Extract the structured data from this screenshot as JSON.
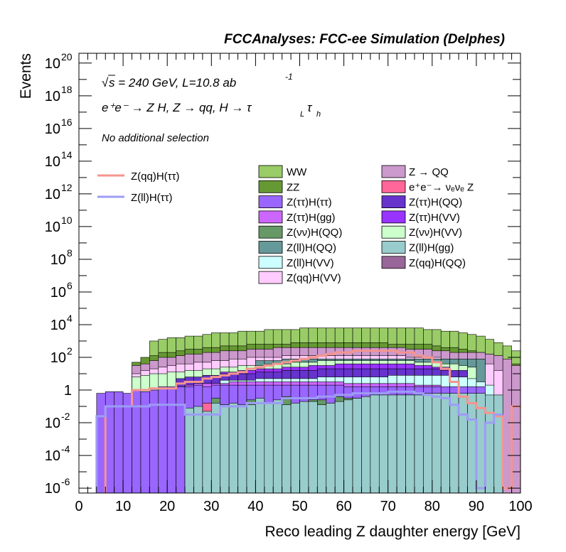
{
  "chart_data": {
    "type": "histogram-stack",
    "header": "FCCAnalyses: FCC-ee Simulation (Delphes)",
    "annotations": {
      "sqrt_s": "s = 240 GeV, L=10.8 ab",
      "sqrt_symbol": "√",
      "lumi_exp": "-1",
      "process": "e⁺e⁻ → Z H, Z → qq, H → τ",
      "tau_l": "L",
      "tau_h": "h",
      "tau_sym": "τ",
      "selection": "No additional selection"
    },
    "xlabel": "Reco leading Z daughter energy [GeV]",
    "ylabel": "Events",
    "x_range": [
      0,
      100
    ],
    "y_range_log10": [
      -6.3,
      20.6
    ],
    "x_ticks": [
      0,
      10,
      20,
      30,
      40,
      50,
      60,
      70,
      80,
      90,
      100
    ],
    "y_ticks": [
      {
        "p": 20,
        "base": "10",
        "exp": "20"
      },
      {
        "p": 18,
        "base": "10",
        "exp": "18"
      },
      {
        "p": 16,
        "base": "10",
        "exp": "16"
      },
      {
        "p": 14,
        "base": "10",
        "exp": "14"
      },
      {
        "p": 12,
        "base": "10",
        "exp": "12"
      },
      {
        "p": 10,
        "base": "10",
        "exp": "10"
      },
      {
        "p": 8,
        "base": "10",
        "exp": "8"
      },
      {
        "p": 6,
        "base": "10",
        "exp": "6"
      },
      {
        "p": 4,
        "base": "10",
        "exp": "4"
      },
      {
        "p": 2,
        "base": "10",
        "exp": "2"
      },
      {
        "p": 0,
        "base": "1",
        "exp": ""
      },
      {
        "p": -2,
        "base": "10",
        "exp": "-2"
      },
      {
        "p": -4,
        "base": "10",
        "exp": "-4"
      },
      {
        "p": -6,
        "base": "10",
        "exp": "-6"
      }
    ],
    "legend_signal": [
      {
        "label": "Z(qq)H(ττ)",
        "color": "#f5948e"
      },
      {
        "label": "Z(ll)H(ττ)",
        "color": "#9c9cf5"
      }
    ],
    "legend_background_col1": [
      {
        "label": "WW",
        "color": "#99cc66"
      },
      {
        "label": "ZZ",
        "color": "#669933"
      },
      {
        "label": "Z(ττ)H(ττ)",
        "color": "#9966ff"
      },
      {
        "label": "Z(ττ)H(gg)",
        "color": "#cc66ff"
      },
      {
        "label": "Z(νν)H(QQ)",
        "color": "#669966"
      },
      {
        "label": "Z(ll)H(QQ)",
        "color": "#669999"
      },
      {
        "label": "Z(ll)H(VV)",
        "color": "#ccffff"
      },
      {
        "label": "Z(qq)H(VV)",
        "color": "#ffccff"
      }
    ],
    "legend_background_col2": [
      {
        "label": "Z → QQ",
        "color": "#cc99cc"
      },
      {
        "label": "e⁺e⁻→ νₑνₑ Z",
        "color": "#ff6699"
      },
      {
        "label": "Z(ττ)H(QQ)",
        "color": "#6633cc"
      },
      {
        "label": "Z(ττ)H(VV)",
        "color": "#9933ff"
      },
      {
        "label": "Z(νν)H(VV)",
        "color": "#ccffcc"
      },
      {
        "label": "Z(ll)H(gg)",
        "color": "#99cccc"
      },
      {
        "label": "Z(qq)H(QQ)",
        "color": "#996699"
      }
    ],
    "bin_width": 2,
    "stack_layers_log10": [
      {
        "name": "Z(ll)H(gg)",
        "color": "#99cccc",
        "values": [
          null,
          null,
          null,
          null,
          null,
          null,
          null,
          null,
          null,
          null,
          null,
          null,
          -1.1,
          -1.0,
          -1.3,
          -0.8,
          -0.9,
          -0.8,
          -0.9,
          -0.9,
          -0.5,
          -0.8,
          -0.6,
          -0.9,
          -0.8,
          -0.7,
          -0.7,
          -0.9,
          -0.8,
          -0.7,
          -0.6,
          -0.5,
          -0.4,
          -0.3,
          -0.3,
          -0.3,
          -0.3,
          -0.3,
          -0.3,
          -0.2,
          -0.2,
          -0.2,
          -0.2,
          -0.2,
          -0.2,
          -0.2,
          -0.3,
          -0.3,
          null,
          null
        ]
      },
      {
        "name": "Z(νν)H(QQ)",
        "color": "#669966",
        "values": [
          null,
          null,
          null,
          null,
          null,
          null,
          null,
          null,
          null,
          null,
          null,
          null,
          null,
          null,
          null,
          -0.5,
          -0.9,
          -0.9,
          null,
          -0.6,
          -0.7,
          null,
          -0.7,
          -0.4,
          -1.7,
          -1.6,
          -0.6,
          -0.6,
          -0.8,
          -0.4,
          -0.5,
          -0.5,
          -0.5,
          -0.5,
          -0.5,
          -0.5,
          -0.3,
          -0.3,
          null,
          null,
          null,
          null,
          null,
          null,
          null,
          null,
          null,
          null,
          null,
          null
        ]
      },
      {
        "name": "e⁺e⁻→ νₑνₑ Z",
        "color": "#ff6699",
        "values": [
          null,
          null,
          null,
          null,
          null,
          null,
          null,
          null,
          null,
          null,
          null,
          null,
          null,
          null,
          -0.8,
          -0.8,
          null,
          null,
          null,
          null,
          -0.8,
          -0.8,
          -0.7,
          null,
          null,
          null,
          null,
          null,
          null,
          null,
          null,
          null,
          null,
          null,
          null,
          null,
          null,
          null,
          null,
          null,
          null,
          null,
          null,
          null,
          null,
          null,
          null,
          null,
          null,
          null
        ]
      },
      {
        "name": "Z(ττ)H(ττ)",
        "color": "#9966ff",
        "values": [
          null,
          null,
          -0.2,
          -0.1,
          -0.1,
          -0.2,
          0.0,
          -0.1,
          0.0,
          0.2,
          0.2,
          0.2,
          0.2,
          0.3,
          0.2,
          0.3,
          0.3,
          0.3,
          0.3,
          0.3,
          0.3,
          0.3,
          0.3,
          0.3,
          0.3,
          0.3,
          0.3,
          0.3,
          0.3,
          0.3,
          0.2,
          0.2,
          0.2,
          0.2,
          0.2,
          0.2,
          0.2,
          0.2,
          0.2,
          0.2,
          0.2,
          0.2,
          0.2,
          0.2,
          0.2,
          0.2,
          null,
          null,
          null,
          null
        ]
      },
      {
        "name": "Z(ττ)H(gg)",
        "color": "#cc66ff",
        "values": [
          null,
          null,
          null,
          null,
          null,
          null,
          null,
          null,
          null,
          null,
          null,
          null,
          0.3,
          0.4,
          0.4,
          0.4,
          0.4,
          0.5,
          0.5,
          0.5,
          0.5,
          0.5,
          0.5,
          0.5,
          0.5,
          0.5,
          0.5,
          0.5,
          0.5,
          0.5,
          0.4,
          0.4,
          0.4,
          0.4,
          0.4,
          0.4,
          0.4,
          0.4,
          0.3,
          0.3,
          0.3,
          null,
          null,
          null,
          null,
          null,
          null,
          null,
          null,
          null
        ]
      },
      {
        "name": "Z(ll)H(VV)",
        "color": "#ccffff",
        "values": [
          null,
          null,
          null,
          null,
          null,
          null,
          null,
          null,
          null,
          null,
          null,
          null,
          null,
          null,
          null,
          null,
          0.6,
          0.6,
          0.6,
          0.6,
          0.7,
          0.7,
          0.7,
          0.7,
          0.7,
          0.7,
          0.7,
          0.8,
          0.8,
          0.8,
          0.8,
          0.8,
          0.8,
          0.8,
          0.8,
          0.9,
          0.9,
          0.9,
          0.9,
          0.9,
          0.9,
          0.9,
          0.8,
          0.8,
          0.7,
          0.5,
          0.3,
          null,
          null,
          null
        ]
      },
      {
        "name": "Z(ττ)H(QQ)",
        "color": "#6633cc",
        "values": [
          null,
          null,
          null,
          null,
          null,
          null,
          null,
          null,
          null,
          null,
          null,
          0.7,
          0.8,
          0.8,
          0.9,
          0.9,
          1.0,
          1.0,
          1.0,
          1.0,
          1.1,
          1.1,
          1.1,
          1.2,
          1.2,
          1.2,
          1.2,
          1.3,
          1.3,
          1.3,
          1.3,
          1.3,
          1.3,
          1.3,
          1.3,
          1.3,
          1.3,
          1.3,
          1.3,
          1.3,
          1.3,
          1.2,
          1.2,
          1.2,
          null,
          null,
          null,
          null,
          null,
          null
        ]
      },
      {
        "name": "Z(ττ)H(VV)",
        "color": "#9933ff",
        "values": [
          null,
          null,
          null,
          null,
          null,
          null,
          null,
          null,
          null,
          null,
          null,
          null,
          null,
          null,
          null,
          null,
          1.1,
          1.1,
          1.2,
          1.2,
          1.3,
          1.3,
          1.3,
          1.4,
          1.4,
          1.4,
          1.5,
          1.5,
          1.5,
          1.6,
          1.6,
          1.6,
          1.6,
          1.6,
          1.6,
          1.6,
          1.6,
          1.6,
          1.5,
          1.5,
          1.4,
          1.4,
          null,
          null,
          null,
          null,
          null,
          null,
          null,
          null
        ]
      },
      {
        "name": "Z(νν)H(VV)",
        "color": "#ccffcc",
        "values": [
          null,
          null,
          null,
          null,
          null,
          null,
          0.8,
          0.9,
          1.0,
          1.0,
          1.1,
          1.1,
          1.2,
          1.2,
          1.3,
          1.3,
          1.4,
          1.4,
          1.5,
          1.5,
          1.5,
          1.6,
          1.6,
          1.6,
          1.7,
          1.7,
          1.7,
          1.8,
          1.8,
          1.8,
          1.8,
          1.8,
          1.8,
          1.8,
          1.8,
          1.8,
          1.8,
          1.8,
          1.7,
          1.7,
          1.7,
          1.6,
          1.6,
          1.5,
          1.4,
          null,
          null,
          null,
          null,
          null
        ]
      },
      {
        "name": "Z(ll)H(QQ)",
        "color": "#669999",
        "values": [
          null,
          null,
          null,
          null,
          null,
          null,
          null,
          null,
          null,
          null,
          null,
          null,
          null,
          null,
          null,
          null,
          null,
          null,
          null,
          null,
          1.8,
          1.8,
          1.8,
          1.9,
          1.9,
          1.9,
          1.9,
          1.9,
          1.9,
          1.9,
          1.9,
          1.9,
          1.9,
          1.9,
          1.9,
          1.9,
          1.9,
          1.9,
          1.9,
          1.9,
          1.9,
          1.9,
          1.9,
          1.9,
          1.9,
          1.9,
          null,
          null,
          null,
          null
        ]
      },
      {
        "name": "Z(qq)H(VV)",
        "color": "#ffccff",
        "values": [
          null,
          null,
          null,
          null,
          null,
          null,
          1.0,
          1.2,
          1.3,
          1.4,
          1.5,
          1.6,
          1.6,
          1.7,
          1.7,
          1.8,
          1.8,
          1.9,
          1.9,
          2.0,
          2.0,
          2.0,
          2.0,
          2.1,
          2.1,
          2.1,
          2.1,
          2.1,
          2.1,
          2.1,
          2.1,
          2.1,
          2.1,
          2.1,
          2.1,
          2.1,
          2.1,
          2.0,
          2.0,
          2.0,
          2.0,
          1.9,
          1.9,
          1.8,
          1.8,
          1.8,
          1.6,
          1.2,
          null,
          null
        ]
      },
      {
        "name": "Z → QQ",
        "color": "#cc99cc",
        "values": [
          null,
          null,
          null,
          null,
          null,
          null,
          1.5,
          1.6,
          1.8,
          2.0,
          2.0,
          2.1,
          2.2,
          2.2,
          2.3,
          2.3,
          2.4,
          2.4,
          2.4,
          2.5,
          2.5,
          2.5,
          2.6,
          2.6,
          2.6,
          2.6,
          2.6,
          2.6,
          2.6,
          2.6,
          2.6,
          2.6,
          2.6,
          2.6,
          2.6,
          2.6,
          2.6,
          2.5,
          2.5,
          2.5,
          2.4,
          2.4,
          2.3,
          2.3,
          2.3,
          2.3,
          2.2,
          2.1,
          1.9,
          1.5
        ]
      },
      {
        "name": "ZZ",
        "color": "#669933",
        "values": [
          null,
          null,
          null,
          null,
          null,
          null,
          1.7,
          2.0,
          2.1,
          2.3,
          2.3,
          2.4,
          2.5,
          2.5,
          2.6,
          2.6,
          2.7,
          2.7,
          2.7,
          2.8,
          2.8,
          2.8,
          2.8,
          2.8,
          2.9,
          2.9,
          2.9,
          2.9,
          2.9,
          2.9,
          2.9,
          2.9,
          2.9,
          2.9,
          2.9,
          2.8,
          2.8,
          2.8,
          2.8,
          2.8,
          2.7,
          2.6,
          2.6,
          2.5,
          2.4,
          2.3,
          2.2,
          2.1,
          1.9,
          1.6
        ]
      },
      {
        "name": "WW",
        "color": "#99cc66",
        "values": [
          null,
          null,
          null,
          null,
          null,
          null,
          null,
          null,
          3.0,
          3.1,
          3.2,
          3.2,
          3.3,
          3.3,
          3.4,
          3.5,
          3.5,
          3.5,
          3.6,
          3.6,
          3.6,
          3.7,
          3.7,
          3.7,
          3.7,
          3.8,
          3.8,
          3.8,
          3.8,
          3.8,
          3.8,
          3.8,
          3.8,
          3.8,
          3.8,
          3.8,
          3.8,
          3.8,
          3.8,
          3.7,
          3.7,
          3.6,
          3.6,
          3.5,
          3.4,
          3.3,
          3.1,
          2.9,
          2.7,
          2.4
        ]
      }
    ],
    "signal_lines_log10": [
      {
        "name": "Z(qq)H(ττ)",
        "color": "#f5948e",
        "values": [
          null,
          null,
          null,
          -1.0,
          -1.0,
          -1.0,
          0.0,
          0.0,
          0.1,
          0.1,
          0.1,
          0.4,
          0.5,
          0.5,
          0.7,
          0.8,
          0.9,
          1.0,
          1.1,
          1.3,
          1.4,
          1.5,
          1.6,
          1.7,
          1.8,
          1.9,
          2.0,
          2.1,
          2.2,
          2.3,
          2.3,
          2.4,
          2.4,
          2.4,
          2.4,
          2.4,
          2.3,
          2.3,
          2.1,
          2.0,
          1.7,
          1.3,
          0.5,
          -0.4,
          -0.8,
          -1.1,
          -1.4,
          -1.6,
          -6.0,
          -1.0
        ]
      },
      {
        "name": "Z(ll)H(ττ)",
        "color": "#9c9cf5",
        "values": [
          null,
          null,
          -1.6,
          -1.0,
          -1.0,
          -1.0,
          -1.0,
          -1.0,
          -0.9,
          -0.9,
          -0.9,
          -0.9,
          -1.5,
          -1.5,
          -1.5,
          -1.5,
          -1.0,
          -1.0,
          -1.0,
          -0.8,
          -0.8,
          -0.8,
          -0.8,
          -0.5,
          -0.5,
          -0.5,
          -0.5,
          -0.4,
          -0.4,
          -0.3,
          -0.3,
          -0.2,
          -0.2,
          -0.2,
          -0.2,
          -0.1,
          -0.1,
          -0.1,
          -0.2,
          -0.3,
          -0.4,
          -0.5,
          -0.9,
          -1.5,
          -1.8,
          -6.0,
          -2.0,
          -1.5,
          null,
          null
        ]
      }
    ]
  }
}
